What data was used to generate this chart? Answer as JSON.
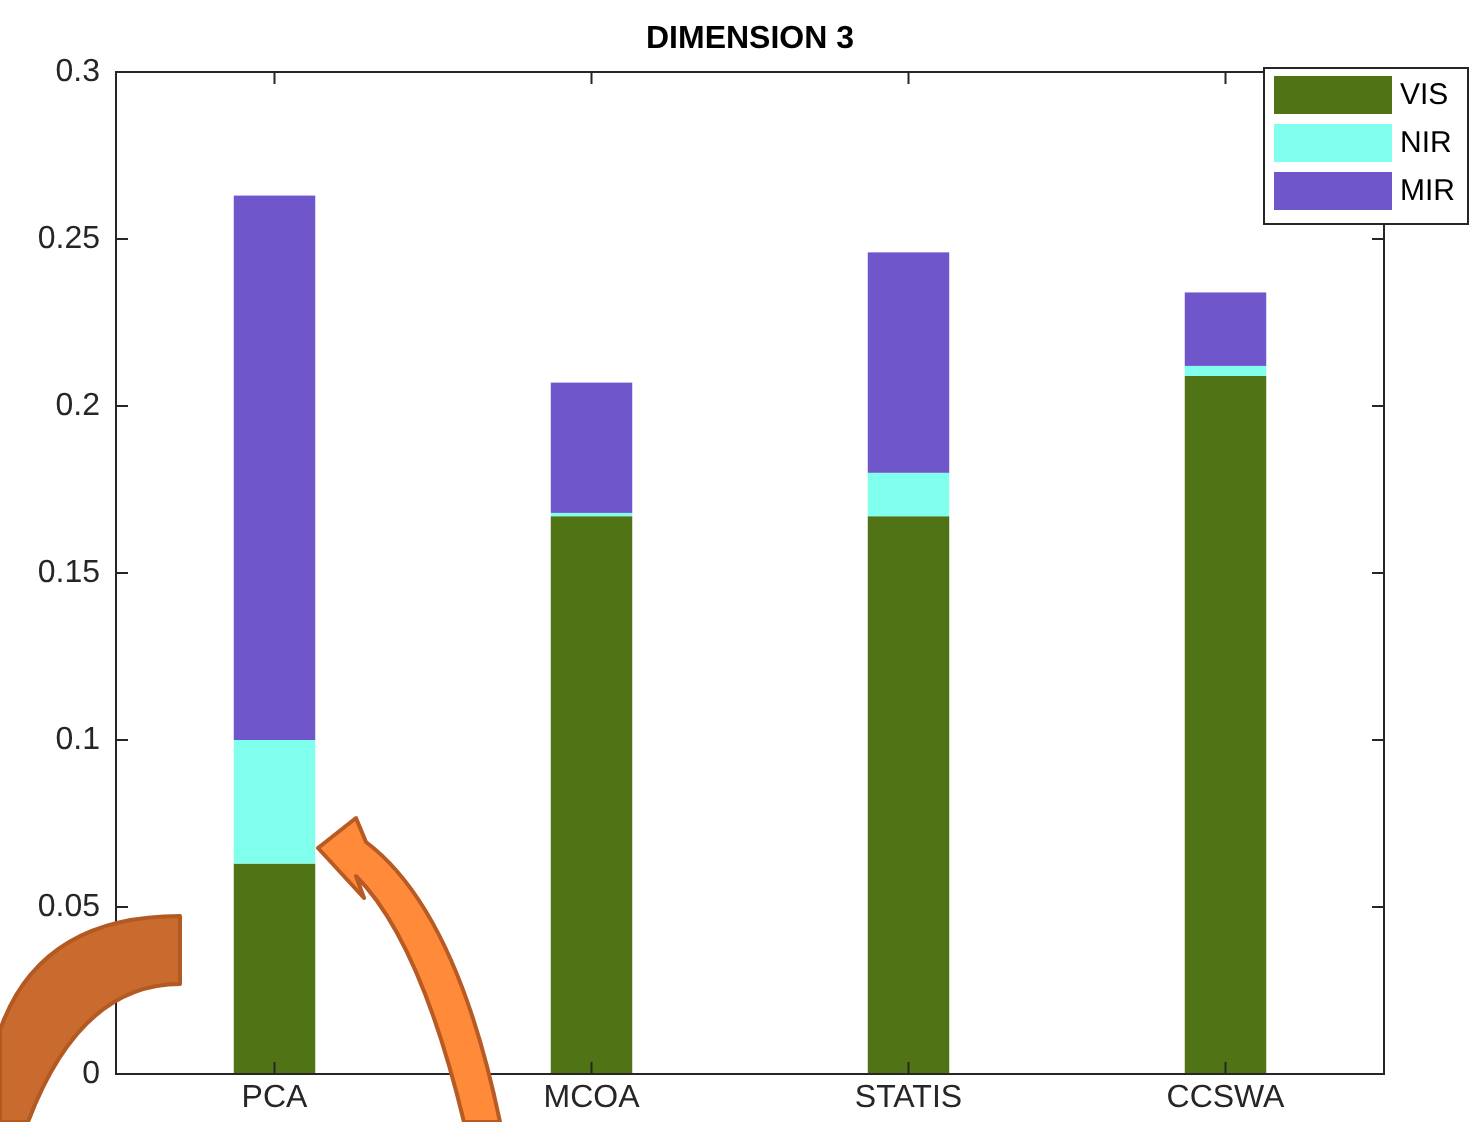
{
  "chart_data": {
    "type": "bar",
    "title": "DIMENSION 3",
    "categories": [
      "PCA",
      "MCOA",
      "STATIS",
      "CCSWA"
    ],
    "series": [
      {
        "name": "VIS",
        "color": "#507315",
        "values": [
          0.063,
          0.167,
          0.167,
          0.209
        ]
      },
      {
        "name": "NIR",
        "color": "#80ffec",
        "values": [
          0.037,
          0.001,
          0.013,
          0.003
        ]
      },
      {
        "name": "MIR",
        "color": "#6f56ca",
        "values": [
          0.163,
          0.039,
          0.066,
          0.022
        ]
      }
    ],
    "stacked": true,
    "ylim": [
      0,
      0.3
    ],
    "yticks": [
      0,
      0.05,
      0.1,
      0.15,
      0.2,
      0.25,
      0.3
    ],
    "grid": false,
    "legend": "top right"
  }
}
